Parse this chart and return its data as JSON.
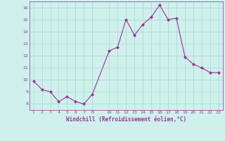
{
  "x": [
    1,
    2,
    3,
    4,
    5,
    6,
    7,
    8,
    10,
    11,
    12,
    13,
    14,
    15,
    16,
    17,
    18,
    19,
    20,
    21,
    22,
    23
  ],
  "y": [
    9.9,
    9.2,
    9.0,
    8.2,
    8.6,
    8.2,
    8.0,
    8.8,
    12.4,
    12.7,
    15.0,
    13.7,
    14.6,
    15.2,
    16.2,
    15.0,
    15.1,
    11.9,
    11.3,
    11.0,
    10.6,
    10.6
  ],
  "line_color": "#993399",
  "marker": "D",
  "marker_size": 2,
  "bg_color": "#cff0eb",
  "grid_color": "#aaddd6",
  "xlabel": "Windchill (Refroidissement éolien,°C)",
  "xlabel_color": "#993399",
  "tick_color": "#993399",
  "ylim": [
    7.5,
    16.5
  ],
  "xlim": [
    0.5,
    23.5
  ],
  "yticks": [
    8,
    9,
    10,
    11,
    12,
    13,
    14,
    15,
    16
  ],
  "xticks": [
    1,
    2,
    3,
    4,
    5,
    6,
    7,
    8,
    10,
    11,
    12,
    13,
    14,
    15,
    16,
    17,
    18,
    19,
    20,
    21,
    22,
    23
  ]
}
